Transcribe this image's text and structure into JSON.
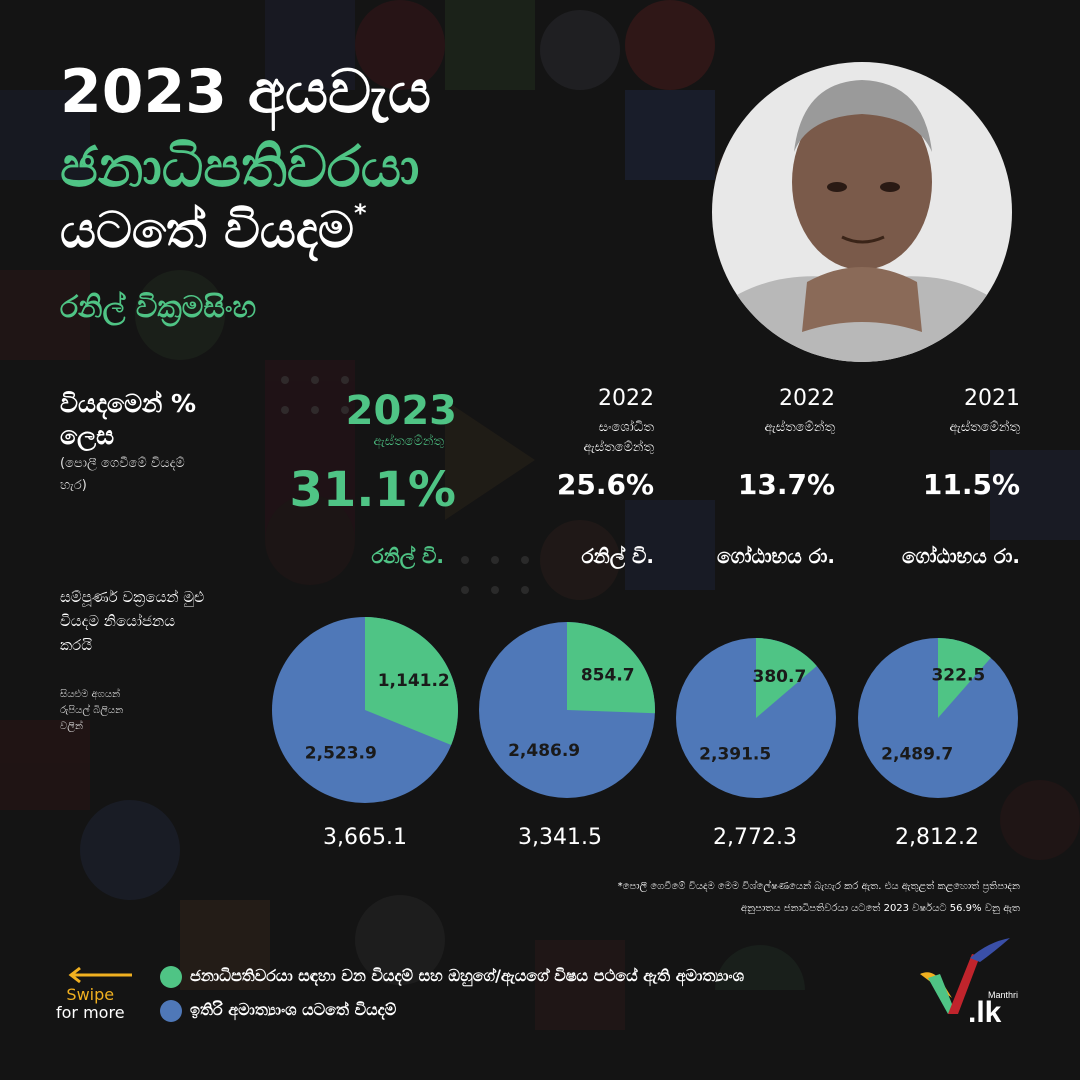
{
  "header": {
    "title_line1": "2023 අයවැය",
    "title_line2": "ජනාධිපතිවරයා",
    "title_line3": "යටතේ වියදම",
    "title_mark": "*",
    "subtitle": "රනිල් වික්‍රමසිංහ"
  },
  "labels": {
    "pct_label_line1": "වියදමෙන් %",
    "pct_label_line2": "ලෙස",
    "pct_note_line1": "(පොලී ගෙවීමේ වියදම්",
    "pct_note_line2": "හැර)",
    "share_note_line1": "සම්පූර්ණ වක්‍රයෙන් මුළු",
    "share_note_line2": "වියදම නියෝජනය",
    "share_note_line3": "කරයි",
    "unit_note_line1": "සියළුම අගයන්",
    "unit_note_line2": "රුපියල් බිලියන",
    "unit_note_line3": "වලින්"
  },
  "colors": {
    "green": "#4fc485",
    "blue": "#4f78b8",
    "orange": "#f0b020",
    "background": "#141414"
  },
  "chart_data": {
    "type": "pie",
    "unit": "Rs. Billion",
    "series_names": [
      "ජනාධිපතිවරයා සඳහා වන වියදම් සහ ඔහුගේ/ඇයගේ විෂය පථයේ ඇති අමාත්‍යාංශ",
      "ඉතිරි අමාත්‍යාංශ යටතේ වියදම්"
    ],
    "pies": [
      {
        "year": "2023",
        "subtitle_line1": "ඇස්තමේන්තු",
        "subtitle_line2": "",
        "percent": "31.1%",
        "leader": "රනිල් වි.",
        "highlight": true,
        "president": 1141.2,
        "president_label": "1,141.2",
        "other": 2523.9,
        "other_label": "2,523.9",
        "total": "3,665.1"
      },
      {
        "year": "2022",
        "subtitle_line1": "සංශෝධිත",
        "subtitle_line2": "ඇස්තමේන්තු",
        "percent": "25.6%",
        "leader": "රනිල් වි.",
        "highlight": false,
        "president": 854.7,
        "president_label": "854.7",
        "other": 2486.9,
        "other_label": "2,486.9",
        "total": "3,341.5"
      },
      {
        "year": "2022",
        "subtitle_line1": "ඇස්තමේන්තු",
        "subtitle_line2": "",
        "percent": "13.7%",
        "leader": "ගෝඨාභය රා.",
        "highlight": false,
        "president": 380.7,
        "president_label": "380.7",
        "other": 2391.5,
        "other_label": "2,391.5",
        "total": "2,772.3"
      },
      {
        "year": "2021",
        "subtitle_line1": "ඇස්තමේන්තු",
        "subtitle_line2": "",
        "percent": "11.5%",
        "leader": "ගෝඨාභය රා.",
        "highlight": false,
        "president": 322.5,
        "president_label": "322.5",
        "other": 2489.7,
        "other_label": "2,489.7",
        "total": "2,812.2"
      }
    ]
  },
  "footnote": {
    "line1": "*පොලී ගෙවීමේ වියදම මෙම විශ්ලේෂණයෙන් බැහැර කර ඇත. එය ඇතුළත් කළහොත් ප්‍රතිපාදන",
    "line2": "අනුපාතය ජනාධිපතිවරයා යටතේ 2023 වර්ෂයට 56.9% වනු ඇත"
  },
  "legend": {
    "green_label": "ජනාධිපතිවරයා සඳහා වන වියදම් සහ ඔහුගේ/ඇයගේ විෂය පථයේ ඇති අමාත්‍යාංශ",
    "blue_label": "ඉතිරි අමාත්‍යාංශ යටතේ වියදම්"
  },
  "nav": {
    "swipe_label": "Swipe",
    "swipe_more": "for more"
  },
  "brand": {
    "small": "Manthri",
    "name": ".lk"
  }
}
